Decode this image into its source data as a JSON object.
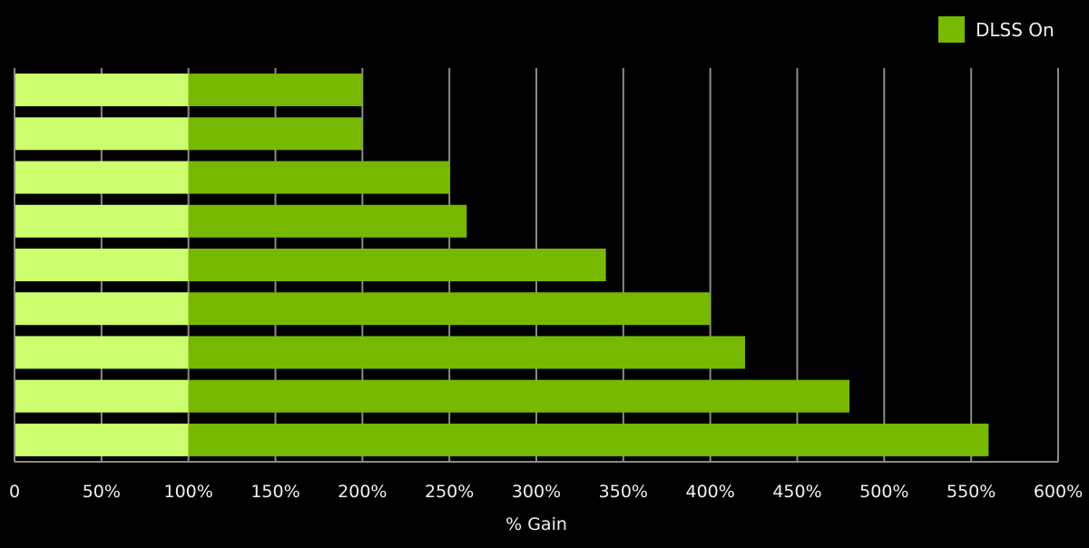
{
  "chart_data": {
    "type": "bar",
    "orientation": "horizontal",
    "stacked": true,
    "title": "",
    "xlabel": "% Gain",
    "ylabel": "",
    "xlim": [
      0,
      600
    ],
    "x_ticks": [
      "0",
      "50%",
      "100%",
      "150%",
      "200%",
      "250%",
      "300%",
      "350%",
      "400%",
      "450%",
      "500%",
      "550%",
      "600%"
    ],
    "x_tick_values": [
      0,
      50,
      100,
      150,
      200,
      250,
      300,
      350,
      400,
      450,
      500,
      550,
      600
    ],
    "grid": "vertical",
    "legend": {
      "position": "top-right",
      "entries": [
        "DLSS On"
      ]
    },
    "categories": [
      "",
      "",
      "",
      "",
      "",
      "",
      "",
      "",
      ""
    ],
    "baseline": {
      "values": [
        100,
        100,
        100,
        100,
        100,
        100,
        100,
        100,
        100
      ],
      "color": "#cdfe6e"
    },
    "series": [
      {
        "name": "DLSS On",
        "color": "#76b900",
        "values": [
          200,
          200,
          250,
          260,
          340,
          400,
          420,
          480,
          560
        ]
      }
    ]
  }
}
